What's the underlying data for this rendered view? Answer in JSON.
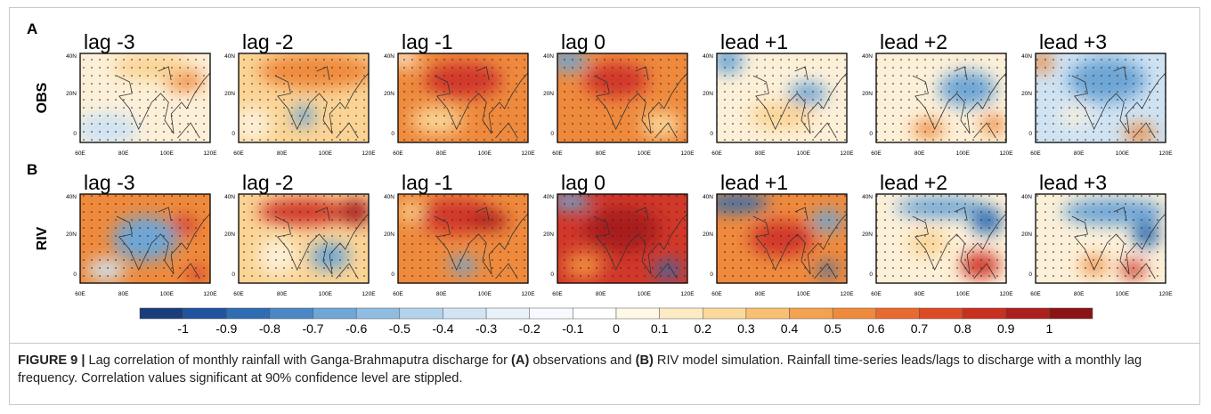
{
  "figure": {
    "rows": [
      {
        "label": "A",
        "name": "OBS",
        "panels": [
          {
            "title": "lag -3"
          },
          {
            "title": "lag -2"
          },
          {
            "title": "lag -1"
          },
          {
            "title": "lag 0"
          },
          {
            "title": "lead +1"
          },
          {
            "title": "lead +2"
          },
          {
            "title": "lead +3"
          }
        ]
      },
      {
        "label": "B",
        "name": "RIV",
        "panels": [
          {
            "title": "lag -3"
          },
          {
            "title": "lag -2"
          },
          {
            "title": "lag -1"
          },
          {
            "title": "lag 0"
          },
          {
            "title": "lead +1"
          },
          {
            "title": "lead +2"
          },
          {
            "title": "lead +3"
          }
        ]
      }
    ],
    "map_axes": {
      "y_ticks": [
        "40N",
        "20N",
        "0"
      ],
      "x_ticks": [
        "60E",
        "80E",
        "100E",
        "120E"
      ]
    },
    "colorbar": {
      "labels": [
        "-1",
        "-0.9",
        "-0.8",
        "-0.7",
        "-0.6",
        "-0.5",
        "-0.4",
        "-0.3",
        "-0.2",
        "-0.1",
        "0",
        "0.1",
        "0.2",
        "0.3",
        "0.4",
        "0.5",
        "0.6",
        "0.7",
        "0.8",
        "0.9",
        "1"
      ]
    }
  },
  "caption": {
    "parts": [
      "FIGURE 9 |",
      " Lag correlation of monthly rainfall with Ganga-Brahmaputra discharge for ",
      "(A)",
      " observations and ",
      "(B)",
      " RIV model simulation. Rainfall time-series leads/lags to discharge with a monthly lag frequency. Correlation values significant at 90% confidence level are stippled."
    ]
  }
}
